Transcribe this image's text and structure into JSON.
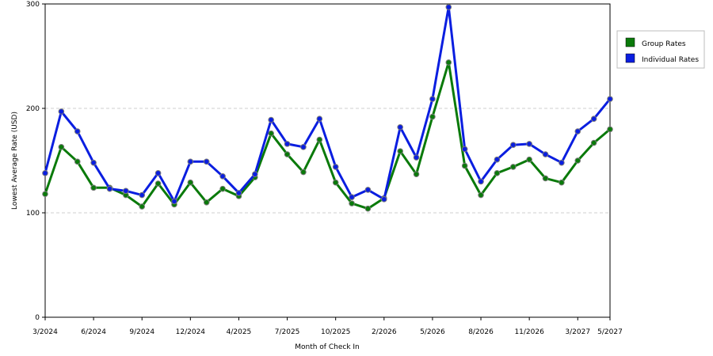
{
  "chart_data": {
    "type": "line",
    "title": "",
    "xlabel": "Month of Check In",
    "ylabel": "Lowest Average Rate (USD)",
    "ylim": [
      0,
      300
    ],
    "yticks": [
      0,
      100,
      200,
      300
    ],
    "grid": true,
    "legend_position": "top-right",
    "x_tick_labels": [
      "3/2024",
      "6/2024",
      "9/2024",
      "12/2024",
      "4/2025",
      "7/2025",
      "10/2025",
      "2/2026",
      "5/2026",
      "8/2026",
      "11/2026",
      "3/2027",
      "5/2027"
    ],
    "x_tick_index": [
      0,
      3,
      6,
      9,
      12,
      15,
      18,
      21,
      24,
      27,
      30,
      33,
      35
    ],
    "point_count": 36,
    "series": [
      {
        "name": "Group Rates",
        "color": "#0a7a0a",
        "values": [
          118,
          163,
          149,
          124,
          124,
          117,
          106,
          128,
          108,
          129,
          110,
          123,
          116,
          134,
          176,
          156,
          139,
          170,
          129,
          109,
          104,
          114,
          159,
          137,
          192,
          244,
          145,
          117,
          138,
          144,
          151,
          133,
          129,
          150,
          167,
          180
        ]
      },
      {
        "name": "Individual Rates",
        "color": "#0a1ee0",
        "values": [
          138,
          197,
          178,
          148,
          123,
          121,
          117,
          138,
          111,
          149,
          149,
          135,
          119,
          137,
          189,
          166,
          163,
          190,
          144,
          115,
          122,
          113,
          182,
          153,
          209,
          297,
          161,
          130,
          151,
          165,
          166,
          156,
          148,
          178,
          190,
          209
        ]
      }
    ]
  }
}
